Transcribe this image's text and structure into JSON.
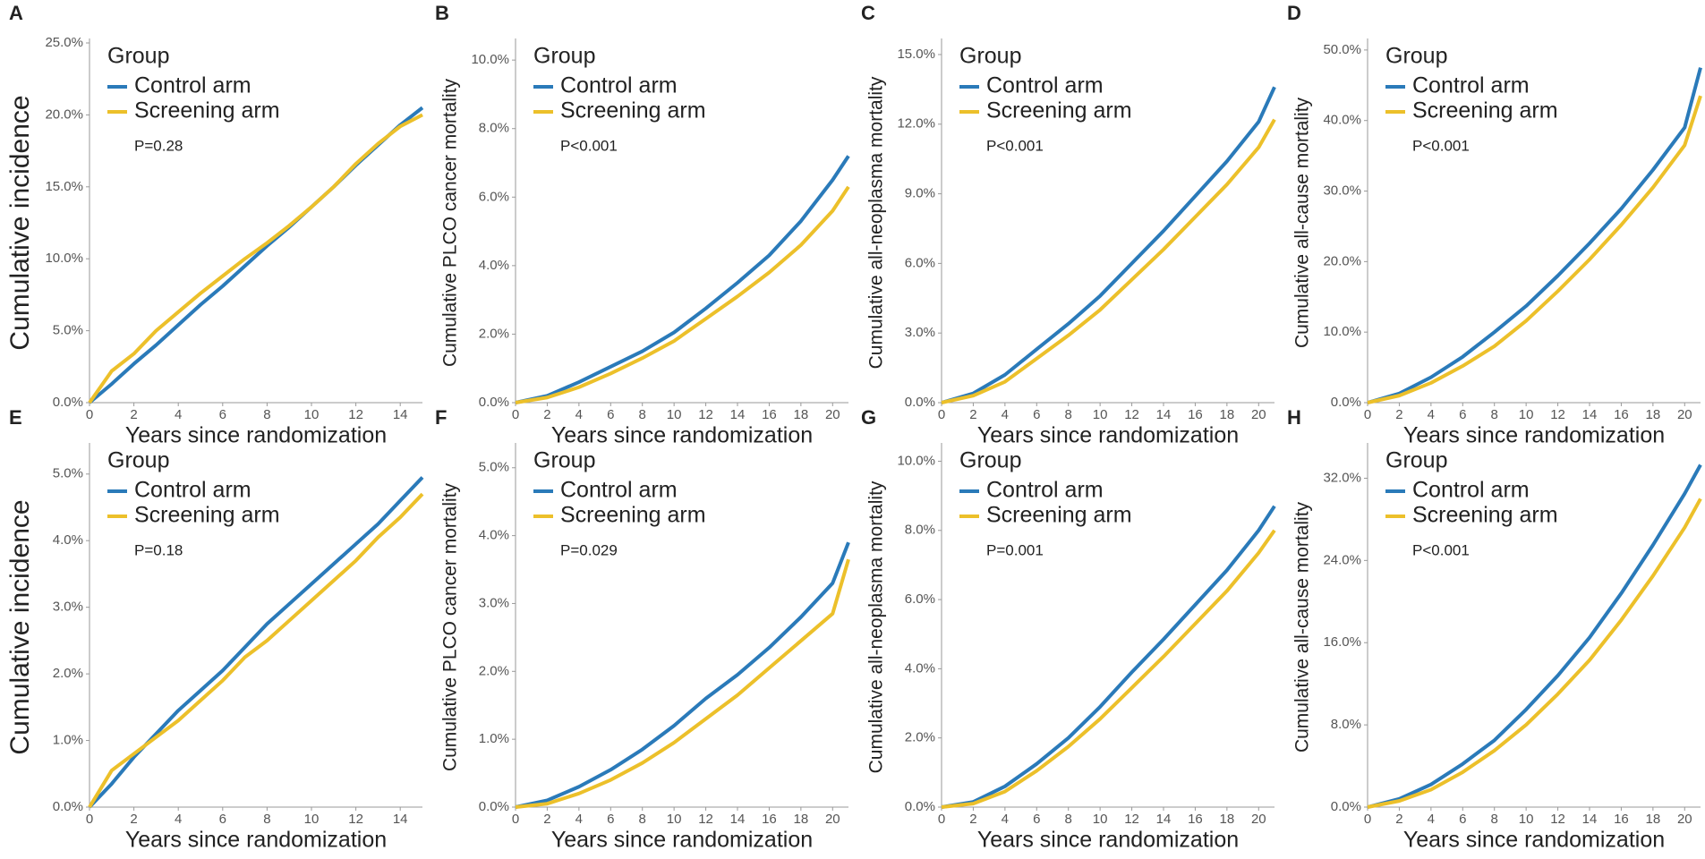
{
  "chart_data": [
    {
      "type": "line",
      "panel": "A",
      "ylabel": "Cumulative incidence",
      "xlabel": "Years since randomization",
      "legend_title": "Group",
      "annotation": "P=0.28",
      "x": [
        0,
        1,
        2,
        3,
        4,
        5,
        6,
        7,
        8,
        9,
        10,
        11,
        12,
        13,
        14,
        15
      ],
      "xlim": [
        0,
        15
      ],
      "xticks": [
        0,
        2,
        4,
        6,
        8,
        10,
        12,
        14
      ],
      "ylim": [
        0,
        25
      ],
      "yticks": [
        {
          "value": 0,
          "label": "0.0%"
        },
        {
          "value": 5,
          "label": "5.0%"
        },
        {
          "value": 10,
          "label": "10.0%"
        },
        {
          "value": 15,
          "label": "15.0%"
        },
        {
          "value": 20,
          "label": "20.0%"
        },
        {
          "value": 25,
          "label": "25.0%"
        }
      ],
      "series": [
        {
          "name": "Control arm",
          "color": "#2a7ab9",
          "values": [
            0,
            1.3,
            2.7,
            4.0,
            5.4,
            6.8,
            8.1,
            9.5,
            10.9,
            12.2,
            13.6,
            15.0,
            16.5,
            17.9,
            19.3,
            20.5
          ]
        },
        {
          "name": "Screening arm",
          "color": "#ecc02a",
          "values": [
            0,
            2.2,
            3.4,
            5.0,
            6.3,
            7.6,
            8.8,
            10.0,
            11.1,
            12.3,
            13.6,
            15.0,
            16.6,
            18.0,
            19.2,
            20.0
          ]
        }
      ]
    },
    {
      "type": "line",
      "panel": "B",
      "ylabel": "Cumulative PLCO cancer mortality",
      "xlabel": "Years since randomization",
      "legend_title": "Group",
      "annotation": "P<0.001",
      "x": [
        0,
        2,
        4,
        6,
        8,
        10,
        12,
        14,
        16,
        18,
        20,
        21
      ],
      "xlim": [
        0,
        21
      ],
      "xticks": [
        0,
        2,
        4,
        6,
        8,
        10,
        12,
        14,
        16,
        18,
        20
      ],
      "ylim": [
        0,
        10.5
      ],
      "yticks": [
        {
          "value": 0,
          "label": "0.0%"
        },
        {
          "value": 2,
          "label": "2.0%"
        },
        {
          "value": 4,
          "label": "4.0%"
        },
        {
          "value": 6,
          "label": "6.0%"
        },
        {
          "value": 8,
          "label": "8.0%"
        },
        {
          "value": 10,
          "label": "10.0%"
        }
      ],
      "series": [
        {
          "name": "Control arm",
          "color": "#2a7ab9",
          "values": [
            0,
            0.2,
            0.6,
            1.05,
            1.5,
            2.05,
            2.75,
            3.5,
            4.3,
            5.3,
            6.5,
            7.2
          ]
        },
        {
          "name": "Screening arm",
          "color": "#ecc02a",
          "values": [
            0,
            0.15,
            0.45,
            0.85,
            1.3,
            1.8,
            2.45,
            3.1,
            3.8,
            4.6,
            5.6,
            6.3
          ]
        }
      ]
    },
    {
      "type": "line",
      "panel": "C",
      "ylabel": "Cumulative all-neoplasma mortality",
      "xlabel": "Years since randomization",
      "legend_title": "Group",
      "annotation": "P<0.001",
      "x": [
        0,
        2,
        4,
        6,
        8,
        10,
        12,
        14,
        16,
        18,
        20,
        21
      ],
      "xlim": [
        0,
        21
      ],
      "xticks": [
        0,
        2,
        4,
        6,
        8,
        10,
        12,
        14,
        16,
        18,
        20
      ],
      "ylim": [
        0,
        15.5
      ],
      "yticks": [
        {
          "value": 0,
          "label": "0.0%"
        },
        {
          "value": 3,
          "label": "3.0%"
        },
        {
          "value": 6,
          "label": "6.0%"
        },
        {
          "value": 9,
          "label": "9.0%"
        },
        {
          "value": 12,
          "label": "12.0%"
        },
        {
          "value": 15,
          "label": "15.0%"
        }
      ],
      "series": [
        {
          "name": "Control arm",
          "color": "#2a7ab9",
          "values": [
            0,
            0.4,
            1.2,
            2.3,
            3.4,
            4.6,
            6.0,
            7.4,
            8.9,
            10.4,
            12.1,
            13.6
          ]
        },
        {
          "name": "Screening arm",
          "color": "#ecc02a",
          "values": [
            0,
            0.3,
            0.9,
            1.9,
            2.9,
            4.0,
            5.3,
            6.6,
            8.0,
            9.4,
            11.0,
            12.2
          ]
        }
      ]
    },
    {
      "type": "line",
      "panel": "D",
      "ylabel": "Cumulative all-cause mortality",
      "xlabel": "Years since randomization",
      "legend_title": "Group",
      "annotation": "P<0.001",
      "x": [
        0,
        2,
        4,
        6,
        8,
        10,
        12,
        14,
        16,
        18,
        20,
        21
      ],
      "xlim": [
        0,
        21
      ],
      "xticks": [
        0,
        2,
        4,
        6,
        8,
        10,
        12,
        14,
        16,
        18,
        20
      ],
      "ylim": [
        0,
        51
      ],
      "yticks": [
        {
          "value": 0,
          "label": "0.0%"
        },
        {
          "value": 10,
          "label": "10.0%"
        },
        {
          "value": 20,
          "label": "20.0%"
        },
        {
          "value": 30,
          "label": "30.0%"
        },
        {
          "value": 40,
          "label": "40.0%"
        },
        {
          "value": 50,
          "label": "50.0%"
        }
      ],
      "series": [
        {
          "name": "Control arm",
          "color": "#2a7ab9",
          "values": [
            0,
            1.3,
            3.6,
            6.5,
            10,
            13.7,
            18,
            22.6,
            27.5,
            33,
            39,
            47.5
          ]
        },
        {
          "name": "Screening arm",
          "color": "#ecc02a",
          "values": [
            0,
            1,
            2.8,
            5.2,
            8,
            11.6,
            15.8,
            20.3,
            25.2,
            30.5,
            36.5,
            43.5
          ]
        }
      ]
    },
    {
      "type": "line",
      "panel": "E",
      "ylabel": "Cumulative incidence",
      "xlabel": "Years since randomization",
      "legend_title": "Group",
      "annotation": "P=0.18",
      "x": [
        0,
        1,
        2,
        3,
        4,
        5,
        6,
        7,
        8,
        9,
        10,
        11,
        12,
        13,
        14,
        15
      ],
      "xlim": [
        0,
        15
      ],
      "xticks": [
        0,
        2,
        4,
        6,
        8,
        10,
        12,
        14
      ],
      "ylim": [
        0,
        5.4
      ],
      "yticks": [
        {
          "value": 0,
          "label": "0.0%"
        },
        {
          "value": 1,
          "label": "1.0%"
        },
        {
          "value": 2,
          "label": "2.0%"
        },
        {
          "value": 3,
          "label": "3.0%"
        },
        {
          "value": 4,
          "label": "4.0%"
        },
        {
          "value": 5,
          "label": "5.0%"
        }
      ],
      "series": [
        {
          "name": "Control arm",
          "color": "#2a7ab9",
          "values": [
            0,
            0.35,
            0.75,
            1.1,
            1.45,
            1.75,
            2.05,
            2.4,
            2.75,
            3.05,
            3.35,
            3.65,
            3.95,
            4.25,
            4.6,
            4.95
          ]
        },
        {
          "name": "Screening arm",
          "color": "#ecc02a",
          "values": [
            0,
            0.55,
            0.8,
            1.05,
            1.3,
            1.6,
            1.9,
            2.25,
            2.5,
            2.8,
            3.1,
            3.4,
            3.7,
            4.05,
            4.35,
            4.7
          ]
        }
      ]
    },
    {
      "type": "line",
      "panel": "F",
      "ylabel": "Cumulative PLCO cancer mortality",
      "xlabel": "Years since randomization",
      "legend_title": "Group",
      "annotation": "P=0.029",
      "x": [
        0,
        2,
        4,
        6,
        8,
        10,
        12,
        14,
        16,
        18,
        20,
        21
      ],
      "xlim": [
        0,
        21
      ],
      "xticks": [
        0,
        2,
        4,
        6,
        8,
        10,
        12,
        14,
        16,
        18,
        20
      ],
      "ylim": [
        0,
        5.3
      ],
      "yticks": [
        {
          "value": 0,
          "label": "0.0%"
        },
        {
          "value": 1,
          "label": "1.0%"
        },
        {
          "value": 2,
          "label": "2.0%"
        },
        {
          "value": 3,
          "label": "3.0%"
        },
        {
          "value": 4,
          "label": "4.0%"
        },
        {
          "value": 5,
          "label": "5.0%"
        }
      ],
      "series": [
        {
          "name": "Control arm",
          "color": "#2a7ab9",
          "values": [
            0,
            0.1,
            0.3,
            0.55,
            0.85,
            1.2,
            1.6,
            1.95,
            2.35,
            2.8,
            3.3,
            3.9
          ]
        },
        {
          "name": "Screening arm",
          "color": "#ecc02a",
          "values": [
            0,
            0.05,
            0.2,
            0.4,
            0.65,
            0.95,
            1.3,
            1.65,
            2.05,
            2.45,
            2.85,
            3.65
          ]
        }
      ]
    },
    {
      "type": "line",
      "panel": "G",
      "ylabel": "Cumulative all-neoplasma mortality",
      "xlabel": "Years since randomization",
      "legend_title": "Group",
      "annotation": "P=0.001",
      "x": [
        0,
        2,
        4,
        6,
        8,
        10,
        12,
        14,
        16,
        18,
        20,
        21
      ],
      "xlim": [
        0,
        21
      ],
      "xticks": [
        0,
        2,
        4,
        6,
        8,
        10,
        12,
        14,
        16,
        18,
        20
      ],
      "ylim": [
        0,
        10.4
      ],
      "yticks": [
        {
          "value": 0,
          "label": "0.0%"
        },
        {
          "value": 2,
          "label": "2.0%"
        },
        {
          "value": 4,
          "label": "4.0%"
        },
        {
          "value": 6,
          "label": "6.0%"
        },
        {
          "value": 8,
          "label": "8.0%"
        },
        {
          "value": 10,
          "label": "10.0%"
        }
      ],
      "series": [
        {
          "name": "Control arm",
          "color": "#2a7ab9",
          "values": [
            0,
            0.15,
            0.6,
            1.25,
            2,
            2.9,
            3.9,
            4.85,
            5.85,
            6.85,
            8,
            8.7
          ]
        },
        {
          "name": "Screening arm",
          "color": "#ecc02a",
          "values": [
            0,
            0.1,
            0.45,
            1.05,
            1.75,
            2.55,
            3.45,
            4.35,
            5.3,
            6.25,
            7.35,
            8.0
          ]
        }
      ]
    },
    {
      "type": "line",
      "panel": "H",
      "ylabel": "Cumulative all-cause mortality",
      "xlabel": "Years since randomization",
      "legend_title": "Group",
      "annotation": "P<0.001",
      "x": [
        0,
        2,
        4,
        6,
        8,
        10,
        12,
        14,
        16,
        18,
        20,
        21
      ],
      "xlim": [
        0,
        21
      ],
      "xticks": [
        0,
        2,
        4,
        6,
        8,
        10,
        12,
        14,
        16,
        18,
        20
      ],
      "ylim": [
        0,
        35
      ],
      "yticks": [
        {
          "value": 0,
          "label": "0.0%"
        },
        {
          "value": 8,
          "label": "8.0%"
        },
        {
          "value": 16,
          "label": "16.0%"
        },
        {
          "value": 24,
          "label": "24.0%"
        },
        {
          "value": 32,
          "label": "32.0%"
        }
      ],
      "series": [
        {
          "name": "Control arm",
          "color": "#2a7ab9",
          "values": [
            0,
            0.8,
            2.2,
            4.2,
            6.5,
            9.5,
            12.8,
            16.5,
            20.8,
            25.5,
            30.5,
            33.3
          ]
        },
        {
          "name": "Screening arm",
          "color": "#ecc02a",
          "values": [
            0,
            0.6,
            1.7,
            3.4,
            5.5,
            8,
            11,
            14.3,
            18.2,
            22.5,
            27.2,
            30
          ]
        }
      ]
    }
  ]
}
